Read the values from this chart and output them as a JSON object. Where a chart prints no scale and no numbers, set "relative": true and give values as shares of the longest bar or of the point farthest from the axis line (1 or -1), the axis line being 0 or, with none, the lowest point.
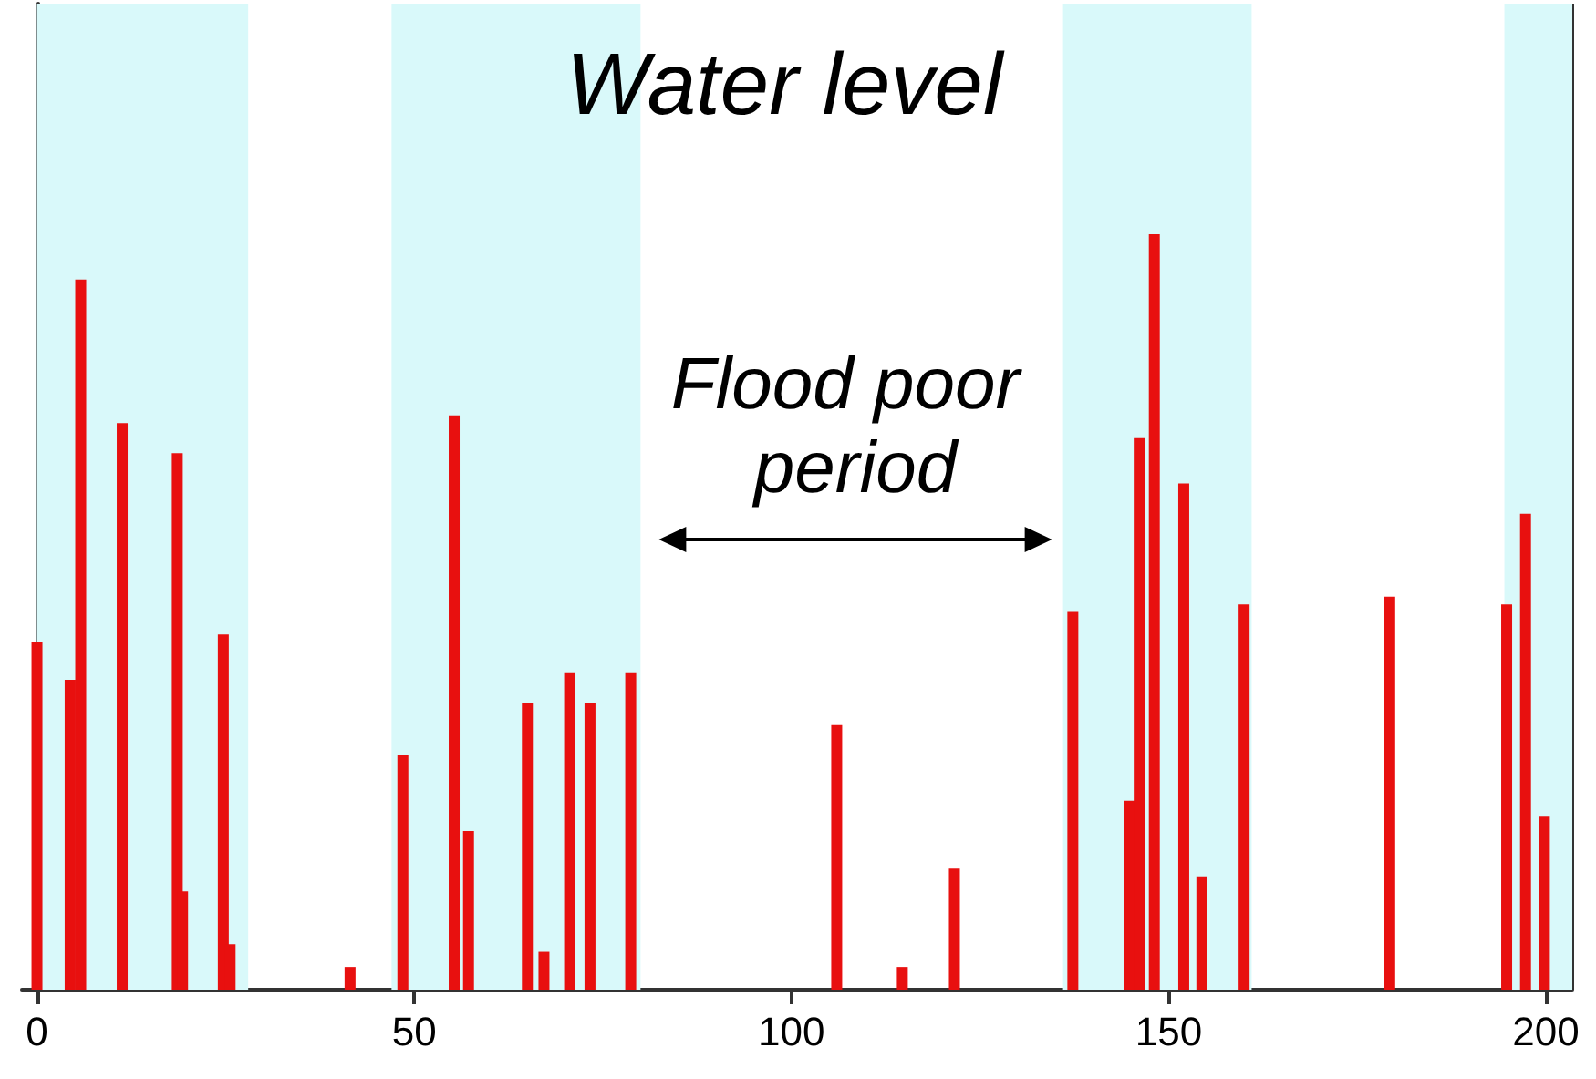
{
  "chart_data": {
    "type": "bar",
    "title": "Water level",
    "annotations": [
      "Flood poor period"
    ],
    "relative": true,
    "tick_labels": "x",
    "x": [
      0,
      4.4,
      5.8,
      11.3,
      18.6,
      19.3,
      24.7,
      25.6,
      41.5,
      48.5,
      55.3,
      57.2,
      65,
      67.2,
      70.6,
      73.3,
      78.7,
      106,
      114.7,
      121.6,
      137.3,
      144.8,
      146.1,
      148.1,
      152,
      154.4,
      160,
      179.3,
      194.8,
      197.3,
      199.8
    ],
    "values": [
      0.46,
      0.41,
      0.94,
      0.75,
      0.71,
      0.13,
      0.47,
      0.06,
      0.03,
      0.31,
      0.76,
      0.21,
      0.38,
      0.05,
      0.42,
      0.38,
      0.42,
      0.35,
      0.03,
      0.16,
      0.5,
      0.25,
      0.73,
      1,
      0.67,
      0.15,
      0.51,
      0.52,
      0.51,
      0.63,
      0.23
    ],
    "color": "#e8100f",
    "xlim": [
      -2,
      203.5
    ],
    "xticks": [
      0,
      50,
      100,
      150,
      200
    ],
    "bands": [
      {
        "axis": "x",
        "from": 0,
        "to": 28,
        "color": "#d9f9fa"
      },
      {
        "axis": "x",
        "from": 47,
        "to": 80,
        "color": "#d9f9fa"
      },
      {
        "axis": "x",
        "from": 136,
        "to": 161,
        "color": "#d9f9fa"
      },
      {
        "axis": "x",
        "from": 194.5,
        "to": 203.5,
        "color": "#d9f9fa"
      }
    ]
  }
}
